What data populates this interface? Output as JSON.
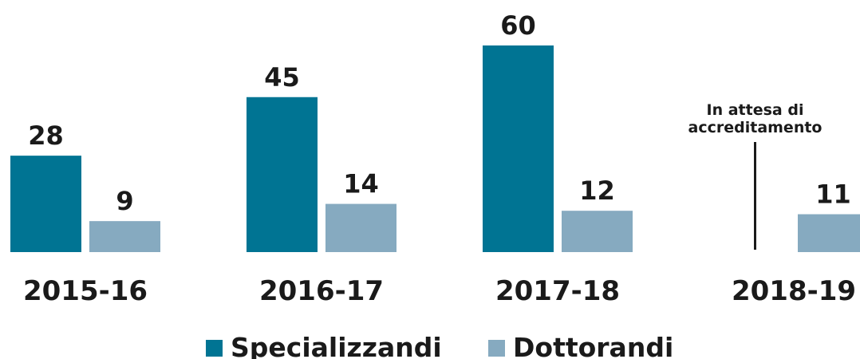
{
  "chart_data": {
    "type": "bar",
    "categories": [
      "2015-16",
      "2016-17",
      "2017-18",
      "2018-19"
    ],
    "series": [
      {
        "name": "Specializzandi",
        "color": "#007493",
        "values": [
          28,
          45,
          60,
          null
        ]
      },
      {
        "name": "Dottorandi",
        "color": "#86aac0",
        "values": [
          9,
          14,
          12,
          11
        ]
      }
    ],
    "annotation": [
      "In attesa di",
      "accreditamento"
    ]
  }
}
